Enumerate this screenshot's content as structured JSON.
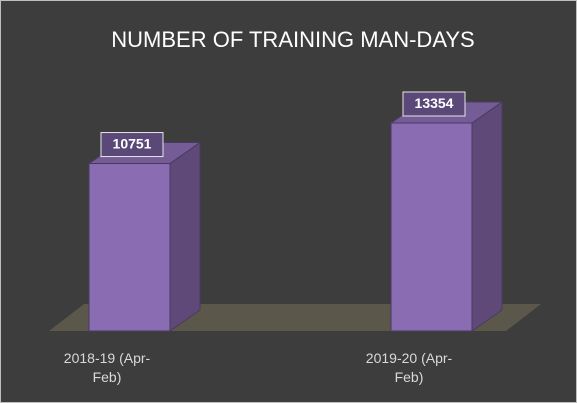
{
  "chart_data": {
    "type": "bar3d",
    "title": "NUMBER OF TRAINING MAN-DAYS",
    "categories": [
      "2018-19 (Apr-Feb)",
      "2019-20 (Apr-Feb)"
    ],
    "values": [
      10751,
      13354
    ],
    "color": "#8a6cb2"
  }
}
